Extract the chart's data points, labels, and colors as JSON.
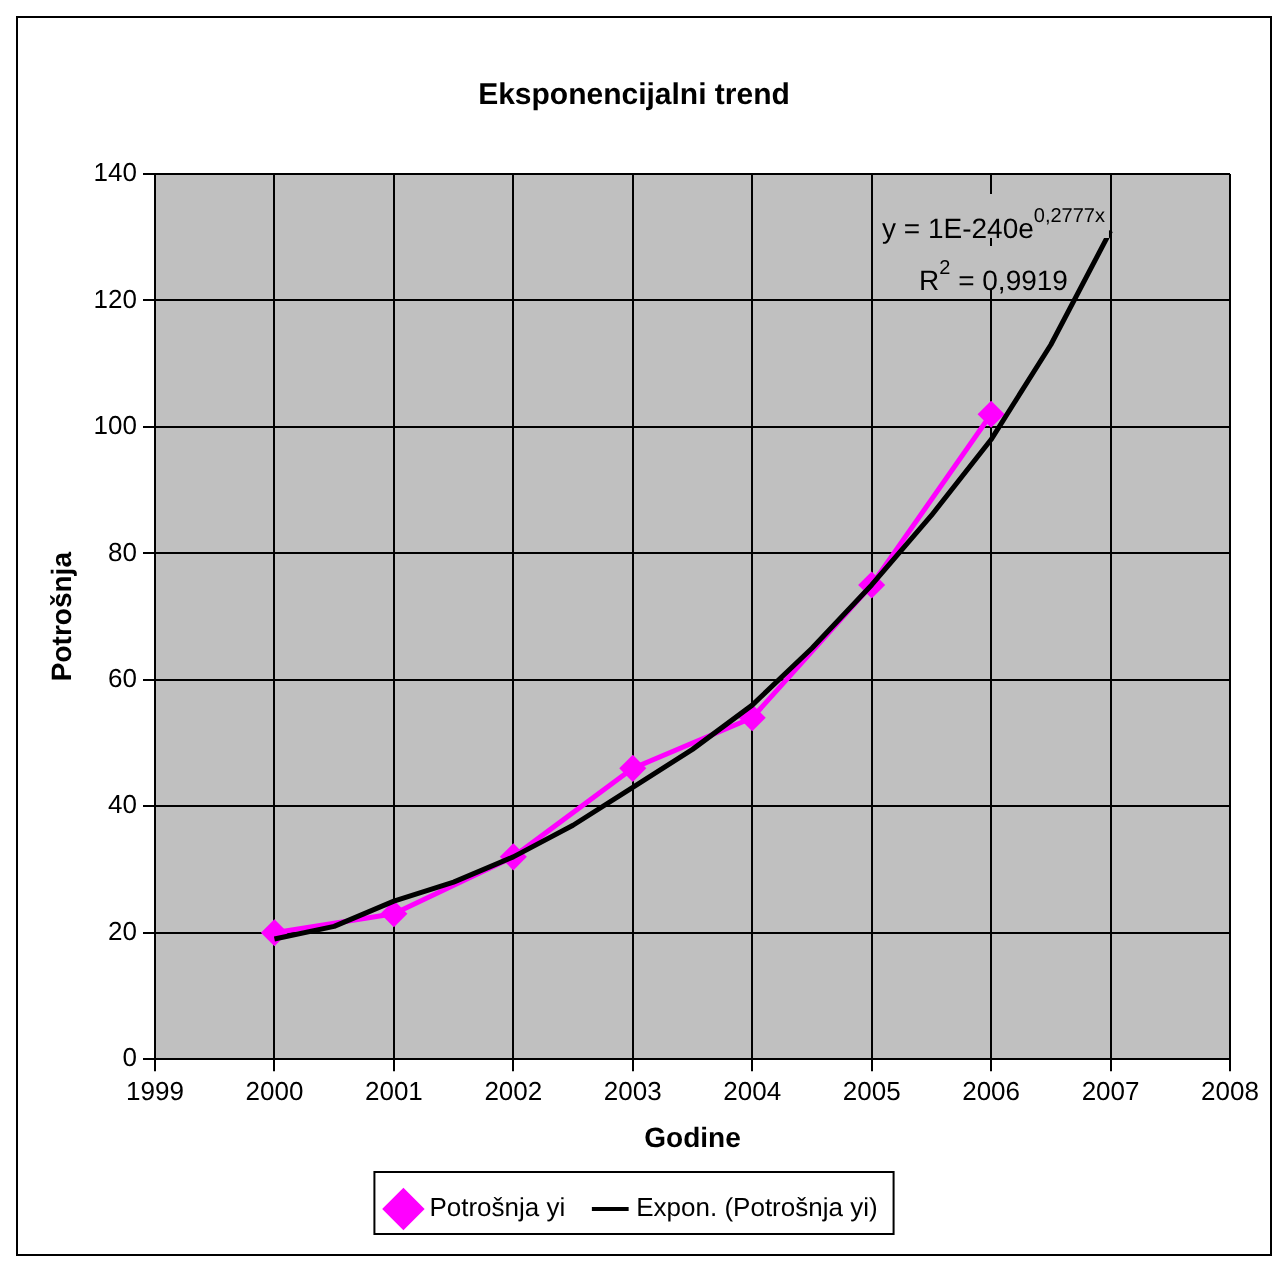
{
  "chart_data": {
    "type": "line",
    "title": "Eksponencijalni trend",
    "xlabel": "Godine",
    "ylabel": "Potrošnja",
    "xlim": [
      1999,
      2008
    ],
    "xticks": [
      1999,
      2000,
      2001,
      2002,
      2003,
      2004,
      2005,
      2006,
      2007,
      2008
    ],
    "ylim": [
      0,
      140
    ],
    "yticks": [
      0,
      20,
      40,
      60,
      80,
      100,
      120,
      140
    ],
    "grid": true,
    "legend": "bottom",
    "annotations": [
      "y = 1E-240e$^{0,2777x}$",
      "R$^{2}$ = 0,9919"
    ],
    "series": [
      {
        "name": "Potrošnja yi",
        "color": "#ff00ff",
        "marker": "diamond",
        "line_style": "solid",
        "x": [
          2000,
          2001,
          2002,
          2003,
          2004,
          2005,
          2006
        ],
        "values": [
          20,
          23,
          32,
          46,
          54,
          75,
          102
        ]
      },
      {
        "name": "Expon. (Potrošnja yi)",
        "color": "#000000",
        "marker": "none",
        "line_style": "solid",
        "x": [
          2000,
          2000.5,
          2001,
          2001.5,
          2002,
          2002.5,
          2003,
          2003.5,
          2004,
          2004.5,
          2005,
          2005.5,
          2006,
          2006.5,
          2007
        ],
        "values": [
          19,
          21,
          25,
          28,
          32,
          37,
          43,
          49,
          56,
          65,
          75,
          86,
          98,
          113,
          131
        ]
      }
    ]
  }
}
